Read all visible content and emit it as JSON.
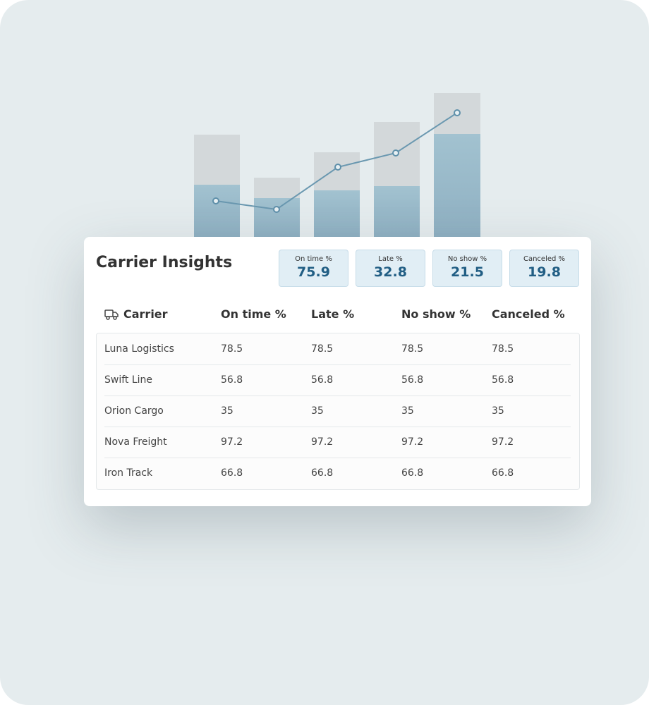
{
  "header": {
    "title": "Carrier Insights"
  },
  "kpis": [
    {
      "label": "On time %",
      "value": 75.9
    },
    {
      "label": "Late %",
      "value": 32.8
    },
    {
      "label": "No show %",
      "value": 21.5
    },
    {
      "label": "Canceled %",
      "value": 19.8
    }
  ],
  "table": {
    "columns": [
      "Carrier",
      "On time %",
      "Late %",
      "No show %",
      "Canceled %"
    ],
    "rows": [
      [
        "Luna Logistics",
        78.5,
        78.5,
        78.5,
        78.5
      ],
      [
        "Swift Line",
        56.8,
        56.8,
        56.8,
        56.8
      ],
      [
        "Orion Cargo",
        35,
        35,
        35,
        35
      ],
      [
        "Nova Freight",
        97.2,
        97.2,
        97.2,
        97.2
      ],
      [
        "Iron Track",
        66.8,
        66.8,
        66.8,
        66.8
      ]
    ]
  }
}
